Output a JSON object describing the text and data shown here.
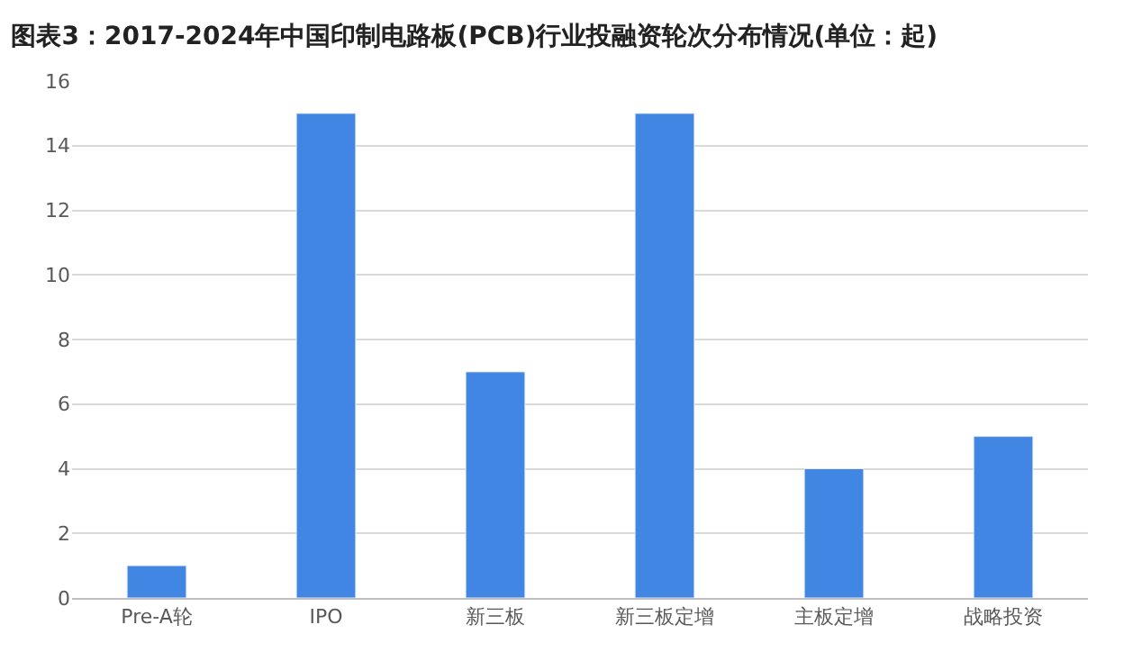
{
  "chart_data": {
    "type": "bar",
    "title": "图表3：2017-2024年中国印制电路板(PCB)行业投融资轮次分布情况(单位：起)",
    "categories": [
      "Pre-A轮",
      "IPO",
      "新三板",
      "新三板定增",
      "主板定增",
      "战略投资"
    ],
    "values": [
      1,
      15,
      7,
      15,
      4,
      5
    ],
    "color": "#4286e3",
    "ylim": [
      0,
      16
    ],
    "yticks": [
      0,
      2,
      4,
      6,
      8,
      10,
      12,
      14,
      16
    ],
    "grid": "y"
  }
}
